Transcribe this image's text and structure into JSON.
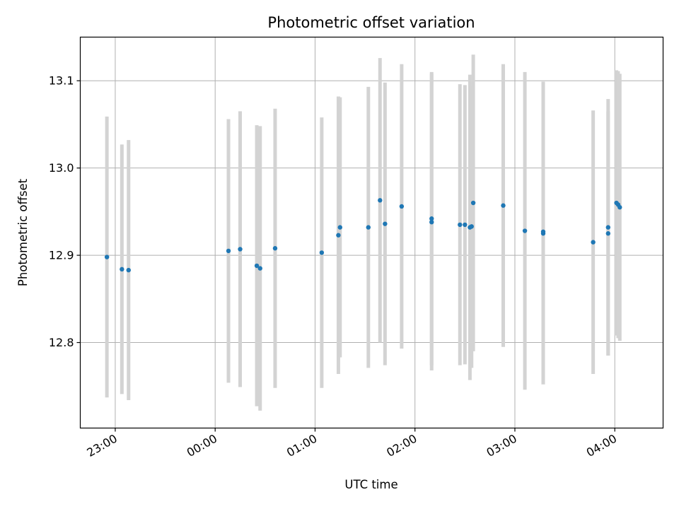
{
  "chart_data": {
    "type": "scatter",
    "title": "Photometric offset variation",
    "xlabel": "UTC time",
    "ylabel": "Photometric offset",
    "xlim": [
      "22:39",
      "04:29"
    ],
    "ylim": [
      12.702,
      13.15
    ],
    "x_ticks": [
      "23:00",
      "00:00",
      "01:00",
      "02:00",
      "03:00",
      "04:00"
    ],
    "y_ticks": [
      "12.8",
      "12.9",
      "13.0",
      "13.1"
    ],
    "grid": true,
    "colors": {
      "marker": "#1f77b4",
      "errorbar": "#d3d3d3",
      "grid": "#b0b0b0"
    },
    "points": [
      {
        "x": "22:55",
        "y": 12.898,
        "yerr": 0.161
      },
      {
        "x": "23:04",
        "y": 12.884,
        "yerr": 0.143
      },
      {
        "x": "23:08",
        "y": 12.883,
        "yerr": 0.149
      },
      {
        "x": "00:08",
        "y": 12.905,
        "yerr": 0.151
      },
      {
        "x": "00:15",
        "y": 12.907,
        "yerr": 0.158
      },
      {
        "x": "00:25",
        "y": 12.888,
        "yerr": 0.161
      },
      {
        "x": "00:27",
        "y": 12.885,
        "yerr": 0.163
      },
      {
        "x": "00:36",
        "y": 12.908,
        "yerr": 0.16
      },
      {
        "x": "01:04",
        "y": 12.903,
        "yerr": 0.155
      },
      {
        "x": "01:14",
        "y": 12.923,
        "yerr": 0.159
      },
      {
        "x": "01:15",
        "y": 12.932,
        "yerr": 0.149
      },
      {
        "x": "01:32",
        "y": 12.932,
        "yerr": 0.161
      },
      {
        "x": "01:39",
        "y": 12.963,
        "yerr": 0.163
      },
      {
        "x": "01:42",
        "y": 12.936,
        "yerr": 0.162
      },
      {
        "x": "01:52",
        "y": 12.956,
        "yerr": 0.163
      },
      {
        "x": "02:10",
        "y": 12.938,
        "yerr": 0.17
      },
      {
        "x": "02:10",
        "y": 12.942,
        "yerr": 0.168
      },
      {
        "x": "02:27",
        "y": 12.935,
        "yerr": 0.161
      },
      {
        "x": "02:30",
        "y": 12.935,
        "yerr": 0.16
      },
      {
        "x": "02:33",
        "y": 12.932,
        "yerr": 0.175
      },
      {
        "x": "02:34",
        "y": 12.933,
        "yerr": 0.162
      },
      {
        "x": "02:35",
        "y": 12.96,
        "yerr": 0.17
      },
      {
        "x": "02:53",
        "y": 12.957,
        "yerr": 0.162
      },
      {
        "x": "03:06",
        "y": 12.928,
        "yerr": 0.182
      },
      {
        "x": "03:17",
        "y": 12.925,
        "yerr": 0.173
      },
      {
        "x": "03:17",
        "y": 12.927,
        "yerr": 0.172
      },
      {
        "x": "03:47",
        "y": 12.915,
        "yerr": 0.151
      },
      {
        "x": "03:56",
        "y": 12.925,
        "yerr": 0.14
      },
      {
        "x": "03:56",
        "y": 12.932,
        "yerr": 0.147
      },
      {
        "x": "04:01",
        "y": 12.96,
        "yerr": 0.152
      },
      {
        "x": "04:02",
        "y": 12.958,
        "yerr": 0.153
      },
      {
        "x": "04:03",
        "y": 12.955,
        "yerr": 0.153
      }
    ]
  }
}
